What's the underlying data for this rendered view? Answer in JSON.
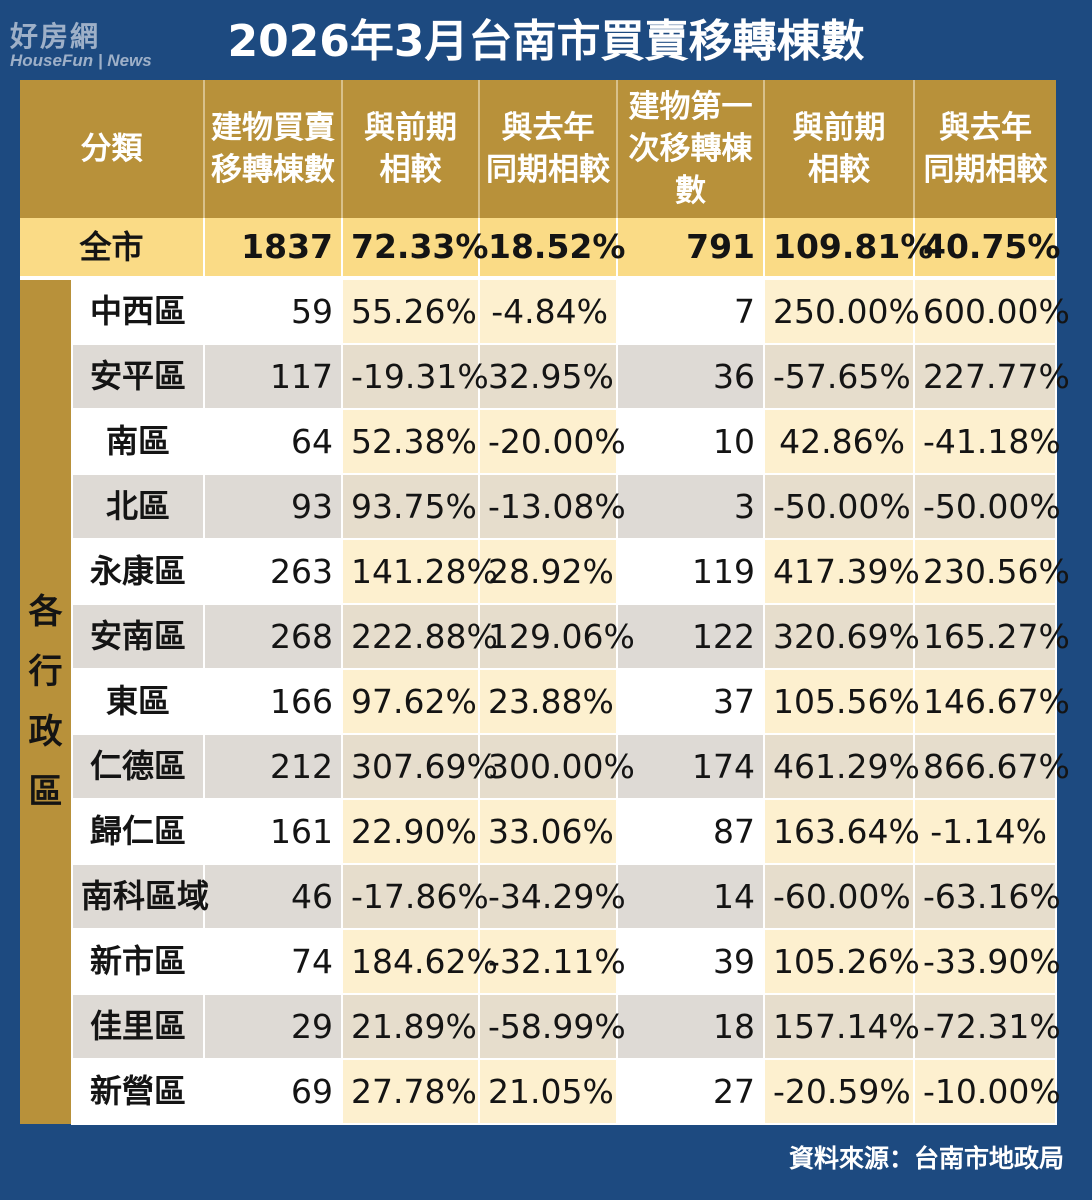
{
  "logo": {
    "cn": "好房網",
    "en": "HouseFun | News"
  },
  "title": "2026年3月台南市買賣移轉棟數",
  "source": "資料來源：台南市地政局",
  "colors": {
    "background": "#1d4a80",
    "header": "#b8913a",
    "total_row": "#fadb86",
    "pct_cell": "#fdf0cf",
    "alt_row": "#dedad5"
  },
  "chart_data": {
    "type": "table",
    "title": "2026年3月台南市買賣移轉棟數",
    "columns": [
      "分類",
      "建物買賣\n移轉棟數",
      "與前期\n相較",
      "與去年\n同期相較",
      "建物第一\n次移轉棟\n數",
      "與前期\n相較",
      "與去年\n同期相較"
    ],
    "total": {
      "name": "全市",
      "values": [
        "1837",
        "72.33%",
        "18.52%",
        "791",
        "109.81%",
        "40.75%"
      ]
    },
    "group_label": "各行政區",
    "rows": [
      {
        "name": "中西區",
        "values": [
          "59",
          "55.26%",
          "-4.84%",
          "7",
          "250.00%",
          "600.00%"
        ]
      },
      {
        "name": "安平區",
        "values": [
          "117",
          "-19.31%",
          "32.95%",
          "36",
          "-57.65%",
          "227.77%"
        ]
      },
      {
        "name": "南區",
        "values": [
          "64",
          "52.38%",
          "-20.00%",
          "10",
          "42.86%",
          "-41.18%"
        ]
      },
      {
        "name": "北區",
        "values": [
          "93",
          "93.75%",
          "-13.08%",
          "3",
          "-50.00%",
          "-50.00%"
        ]
      },
      {
        "name": "永康區",
        "values": [
          "263",
          "141.28%",
          "28.92%",
          "119",
          "417.39%",
          "230.56%"
        ]
      },
      {
        "name": "安南區",
        "values": [
          "268",
          "222.88%",
          "129.06%",
          "122",
          "320.69%",
          "165.27%"
        ]
      },
      {
        "name": "東區",
        "values": [
          "166",
          "97.62%",
          "23.88%",
          "37",
          "105.56%",
          "146.67%"
        ]
      },
      {
        "name": "仁德區",
        "values": [
          "212",
          "307.69%",
          "300.00%",
          "174",
          "461.29%",
          "866.67%"
        ]
      },
      {
        "name": "歸仁區",
        "values": [
          "161",
          "22.90%",
          "33.06%",
          "87",
          "163.64%",
          "-1.14%"
        ]
      },
      {
        "name": "南科區域",
        "values": [
          "46",
          "-17.86%",
          "-34.29%",
          "14",
          "-60.00%",
          "-63.16%"
        ]
      },
      {
        "name": "新市區",
        "values": [
          "74",
          "184.62%",
          "-32.11%",
          "39",
          "105.26%",
          "-33.90%"
        ]
      },
      {
        "name": "佳里區",
        "values": [
          "29",
          "21.89%",
          "-58.99%",
          "18",
          "157.14%",
          "-72.31%"
        ]
      },
      {
        "name": "新營區",
        "values": [
          "69",
          "27.78%",
          "21.05%",
          "27",
          "-20.59%",
          "-10.00%"
        ]
      }
    ]
  }
}
